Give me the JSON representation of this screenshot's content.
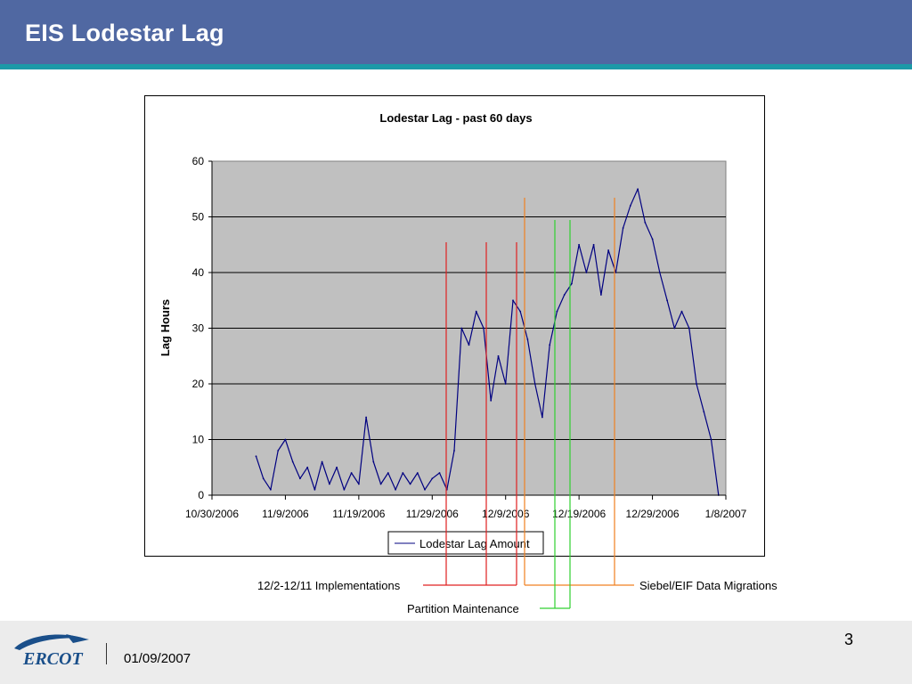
{
  "slide": {
    "title": "EIS Lodestar Lag",
    "page_number": "3",
    "footer_date": "01/09/2007",
    "logo_text": "ERCOT",
    "colors": {
      "header": "#5068a2",
      "stripe": "#1c9aa8",
      "footer": "#ececec"
    }
  },
  "annotations": {
    "implementations": "12/2-12/11 Implementations",
    "partition": "Partition Maintenance",
    "migrations": "Siebel/EIF Data Migrations"
  },
  "chart_data": {
    "type": "line",
    "title": "Lodestar Lag - past 60 days",
    "ylabel": "Lag Hours",
    "xlabel": "",
    "ylim": [
      0,
      60
    ],
    "yticks": [
      0,
      10,
      20,
      30,
      40,
      50,
      60
    ],
    "xlim": [
      "10/30/2006",
      "1/8/2007"
    ],
    "xtick_labels": [
      "10/30/2006",
      "11/9/2006",
      "11/19/2006",
      "11/29/2006",
      "12/9/2006",
      "12/19/2006",
      "12/29/2006",
      "1/8/2007"
    ],
    "grid": true,
    "plot_background": "#c0c0c0",
    "legend": {
      "position": "bottom",
      "entries": [
        "Lodestar Lag Amount"
      ]
    },
    "series": [
      {
        "name": "Lodestar Lag Amount",
        "color": "#000080",
        "points": [
          [
            "11/5/2006",
            7
          ],
          [
            "11/6/2006",
            3
          ],
          [
            "11/7/2006",
            1
          ],
          [
            "11/8/2006",
            8
          ],
          [
            "11/9/2006",
            10
          ],
          [
            "11/10/2006",
            6
          ],
          [
            "11/11/2006",
            3
          ],
          [
            "11/12/2006",
            5
          ],
          [
            "11/13/2006",
            1
          ],
          [
            "11/14/2006",
            6
          ],
          [
            "11/15/2006",
            2
          ],
          [
            "11/16/2006",
            5
          ],
          [
            "11/17/2006",
            1
          ],
          [
            "11/18/2006",
            4
          ],
          [
            "11/19/2006",
            2
          ],
          [
            "11/20/2006",
            14
          ],
          [
            "11/21/2006",
            6
          ],
          [
            "11/22/2006",
            2
          ],
          [
            "11/23/2006",
            4
          ],
          [
            "11/24/2006",
            1
          ],
          [
            "11/25/2006",
            4
          ],
          [
            "11/26/2006",
            2
          ],
          [
            "11/27/2006",
            4
          ],
          [
            "11/28/2006",
            1
          ],
          [
            "11/29/2006",
            3
          ],
          [
            "11/30/2006",
            4
          ],
          [
            "12/1/2006",
            1
          ],
          [
            "12/2/2006",
            8
          ],
          [
            "12/3/2006",
            30
          ],
          [
            "12/4/2006",
            27
          ],
          [
            "12/5/2006",
            33
          ],
          [
            "12/6/2006",
            30
          ],
          [
            "12/7/2006",
            17
          ],
          [
            "12/8/2006",
            25
          ],
          [
            "12/9/2006",
            20
          ],
          [
            "12/10/2006",
            35
          ],
          [
            "12/11/2006",
            33
          ],
          [
            "12/12/2006",
            28
          ],
          [
            "12/13/2006",
            20
          ],
          [
            "12/14/2006",
            14
          ],
          [
            "12/15/2006",
            27
          ],
          [
            "12/16/2006",
            33
          ],
          [
            "12/17/2006",
            36
          ],
          [
            "12/18/2006",
            38
          ],
          [
            "12/19/2006",
            45
          ],
          [
            "12/20/2006",
            40
          ],
          [
            "12/21/2006",
            45
          ],
          [
            "12/22/2006",
            36
          ],
          [
            "12/23/2006",
            44
          ],
          [
            "12/24/2006",
            40
          ],
          [
            "12/25/2006",
            48
          ],
          [
            "12/26/2006",
            52
          ],
          [
            "12/27/2006",
            55
          ],
          [
            "12/28/2006",
            49
          ],
          [
            "12/29/2006",
            46
          ],
          [
            "12/30/2006",
            40
          ],
          [
            "12/31/2006",
            35
          ],
          [
            "1/1/2007",
            30
          ],
          [
            "1/2/2007",
            33
          ],
          [
            "1/3/2007",
            30
          ],
          [
            "1/4/2007",
            20
          ],
          [
            "1/5/2007",
            15
          ],
          [
            "1/6/2007",
            10
          ],
          [
            "1/7/2007",
            0
          ]
        ]
      }
    ]
  }
}
